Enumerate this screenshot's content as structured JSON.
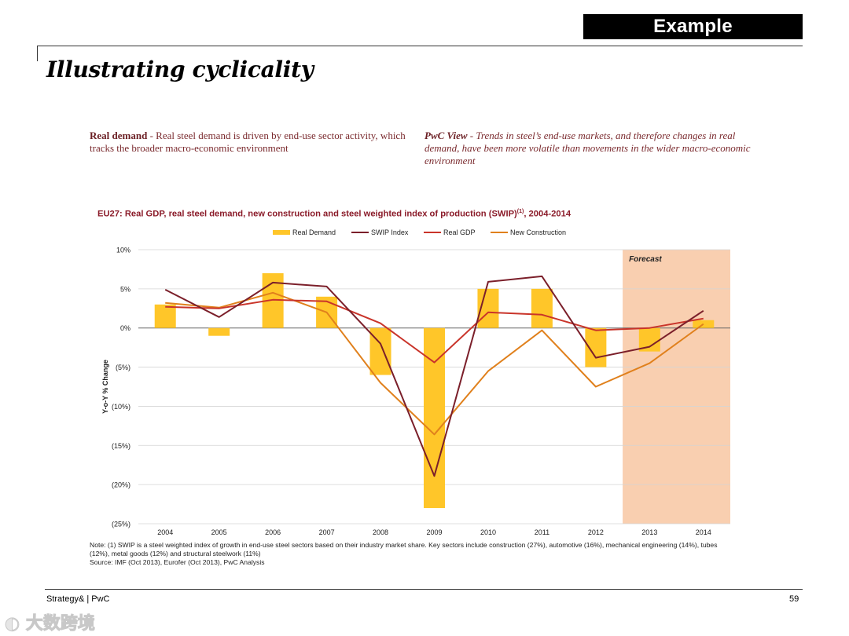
{
  "header": {
    "tag": "Example",
    "title": "Illustrating cyclicality"
  },
  "left_text": {
    "bold": "Real demand",
    "body": " - Real steel demand is driven by end-use sector activity, which tracks the broader macro-economic environment"
  },
  "right_text": {
    "bold": "PwC View",
    "body": " - Trends in steel’s end-use markets, and therefore changes in real demand, have been more volatile than movements in the wider macro-economic environment"
  },
  "chart_title": {
    "main": "EU27: Real GDP, real steel demand, new construction and steel weighted index of production (SWIP)",
    "sup": "(1)",
    "tail": ", 2004-2014"
  },
  "chart_data": {
    "type": "bar",
    "categories": [
      "2004",
      "2005",
      "2006",
      "2007",
      "2008",
      "2009",
      "2010",
      "2011",
      "2012",
      "2013",
      "2014"
    ],
    "ylabel": "Y-o-Y % Change",
    "ylim": [
      -25,
      10
    ],
    "yticks": [
      10,
      5,
      0,
      -5,
      -10,
      -15,
      -20,
      -25
    ],
    "ytick_labels": [
      "10%",
      "5%",
      "0%",
      "(5%)",
      "(10%)",
      "(15%)",
      "(20%)",
      "(25%)"
    ],
    "forecast_label": "Forecast",
    "forecast_from": "2013",
    "series": [
      {
        "name": "Real Demand",
        "kind": "bar",
        "color": "#ffc629",
        "values": [
          3.0,
          -1.0,
          7.0,
          4.0,
          -6.0,
          -23.0,
          5.0,
          5.0,
          -5.0,
          -3.0,
          1.0
        ]
      },
      {
        "name": "SWIP Index",
        "kind": "line",
        "color": "#7b1f2a",
        "values": [
          4.9,
          1.4,
          5.8,
          5.3,
          -2.0,
          -18.9,
          5.9,
          6.6,
          -3.8,
          -2.4,
          2.2
        ]
      },
      {
        "name": "Real GDP",
        "kind": "line",
        "color": "#c9342a",
        "values": [
          2.7,
          2.5,
          3.6,
          3.4,
          0.6,
          -4.4,
          2.0,
          1.7,
          -0.3,
          0.0,
          1.2
        ]
      },
      {
        "name": "New Construction",
        "kind": "line",
        "color": "#e0801c",
        "values": [
          3.2,
          2.6,
          4.5,
          2.0,
          -7.0,
          -13.6,
          -5.5,
          -0.3,
          -7.5,
          -4.5,
          0.5
        ]
      }
    ],
    "grid": true,
    "legend": "top"
  },
  "note": {
    "line1": "Note: (1) SWIP is a steel weighted index of growth in end-use steel sectors based on their industry market share. Key sectors include construction (27%), automotive (16%), mechanical engineering (14%), tubes (12%), metal goods (12%) and structural steelwork (11%)",
    "line2": "Source: IMF (Oct 2013), Eurofer (Oct 2013), PwC Analysis"
  },
  "footer": {
    "left": "Strategy& | PwC",
    "page": "59"
  },
  "watermark": "大数跨境"
}
